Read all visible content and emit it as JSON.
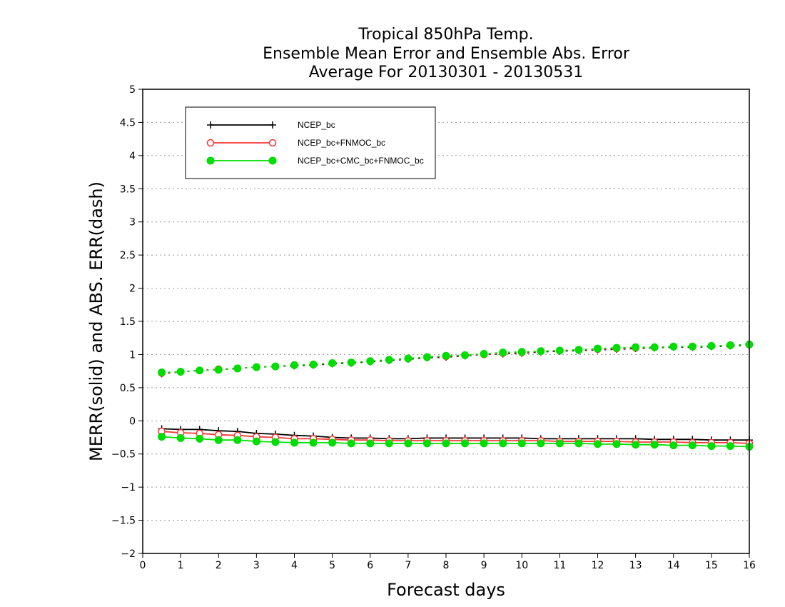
{
  "chart_data": {
    "type": "line",
    "title_lines": [
      "Tropical 850hPa Temp.",
      "Ensemble Mean Error and Ensemble Abs. Error",
      "Average For 20130301 - 20130531"
    ],
    "xlabel": "Forecast days",
    "ylabel": "MERR(solid) and ABS. ERR(dash)",
    "xlim": [
      0,
      16
    ],
    "ylim": [
      -2,
      5
    ],
    "x_ticks": [
      0,
      1,
      2,
      3,
      4,
      5,
      6,
      7,
      8,
      9,
      10,
      11,
      12,
      13,
      14,
      15,
      16
    ],
    "y_ticks": [
      -2,
      -1.5,
      -1,
      -0.5,
      0,
      0.5,
      1,
      1.5,
      2,
      2.5,
      3,
      3.5,
      4,
      4.5,
      5
    ],
    "y_tick_labels": [
      "−2",
      "−1.5",
      "−1",
      "−0.5",
      "0",
      "0.5",
      "1",
      "1.5",
      "2",
      "2.5",
      "3",
      "3.5",
      "4",
      "4.5",
      "5"
    ],
    "grid": "horizontal dotted",
    "legend_position": "top-left",
    "x": [
      0.5,
      1,
      1.5,
      2,
      2.5,
      3,
      3.5,
      4,
      4.5,
      5,
      5.5,
      6,
      6.5,
      7,
      7.5,
      8,
      8.5,
      9,
      9.5,
      10,
      10.5,
      11,
      11.5,
      12,
      12.5,
      13,
      13.5,
      14,
      14.5,
      15,
      15.5,
      16
    ],
    "series": [
      {
        "name": "NCEP_bc",
        "color": "#000000",
        "marker": "plus",
        "merr": [
          -0.12,
          -0.13,
          -0.13,
          -0.15,
          -0.16,
          -0.19,
          -0.2,
          -0.22,
          -0.23,
          -0.25,
          -0.26,
          -0.26,
          -0.27,
          -0.27,
          -0.26,
          -0.26,
          -0.26,
          -0.26,
          -0.26,
          -0.26,
          -0.27,
          -0.27,
          -0.27,
          -0.27,
          -0.27,
          -0.27,
          -0.28,
          -0.28,
          -0.28,
          -0.29,
          -0.29,
          -0.29
        ],
        "abs_err": [
          0.71,
          0.74,
          0.76,
          0.77,
          0.79,
          0.81,
          0.82,
          0.83,
          0.84,
          0.86,
          0.87,
          0.89,
          0.91,
          0.93,
          0.95,
          0.96,
          0.98,
          1.0,
          1.01,
          1.02,
          1.04,
          1.05,
          1.06,
          1.07,
          1.08,
          1.09,
          1.1,
          1.11,
          1.11,
          1.12,
          1.13,
          1.14
        ]
      },
      {
        "name": "NCEP_bc+FNMOC_bc",
        "color": "#ff3333",
        "marker": "open-circle",
        "merr": [
          -0.16,
          -0.18,
          -0.19,
          -0.21,
          -0.22,
          -0.24,
          -0.25,
          -0.27,
          -0.27,
          -0.28,
          -0.29,
          -0.29,
          -0.3,
          -0.3,
          -0.3,
          -0.3,
          -0.3,
          -0.3,
          -0.3,
          -0.3,
          -0.3,
          -0.31,
          -0.31,
          -0.31,
          -0.31,
          -0.32,
          -0.32,
          -0.32,
          -0.33,
          -0.33,
          -0.33,
          -0.34
        ],
        "abs_err": [
          0.72,
          0.74,
          0.76,
          0.78,
          0.79,
          0.81,
          0.82,
          0.84,
          0.85,
          0.87,
          0.88,
          0.9,
          0.92,
          0.94,
          0.96,
          0.97,
          0.99,
          1.0,
          1.02,
          1.03,
          1.05,
          1.06,
          1.07,
          1.08,
          1.09,
          1.1,
          1.11,
          1.12,
          1.12,
          1.13,
          1.14,
          1.15
        ]
      },
      {
        "name": "NCEP_bc+CMC_bc+FNMOC_bc",
        "color": "#00dd00",
        "marker": "filled-circle",
        "merr": [
          -0.24,
          -0.26,
          -0.27,
          -0.29,
          -0.29,
          -0.31,
          -0.32,
          -0.33,
          -0.33,
          -0.33,
          -0.34,
          -0.34,
          -0.34,
          -0.34,
          -0.34,
          -0.34,
          -0.34,
          -0.34,
          -0.34,
          -0.34,
          -0.34,
          -0.34,
          -0.34,
          -0.35,
          -0.35,
          -0.36,
          -0.36,
          -0.37,
          -0.37,
          -0.38,
          -0.38,
          -0.39
        ],
        "abs_err": [
          0.73,
          0.74,
          0.76,
          0.77,
          0.79,
          0.81,
          0.82,
          0.84,
          0.85,
          0.87,
          0.88,
          0.9,
          0.92,
          0.94,
          0.96,
          0.98,
          0.99,
          1.01,
          1.03,
          1.04,
          1.05,
          1.06,
          1.07,
          1.09,
          1.1,
          1.11,
          1.11,
          1.12,
          1.12,
          1.13,
          1.14,
          1.15
        ]
      }
    ]
  }
}
